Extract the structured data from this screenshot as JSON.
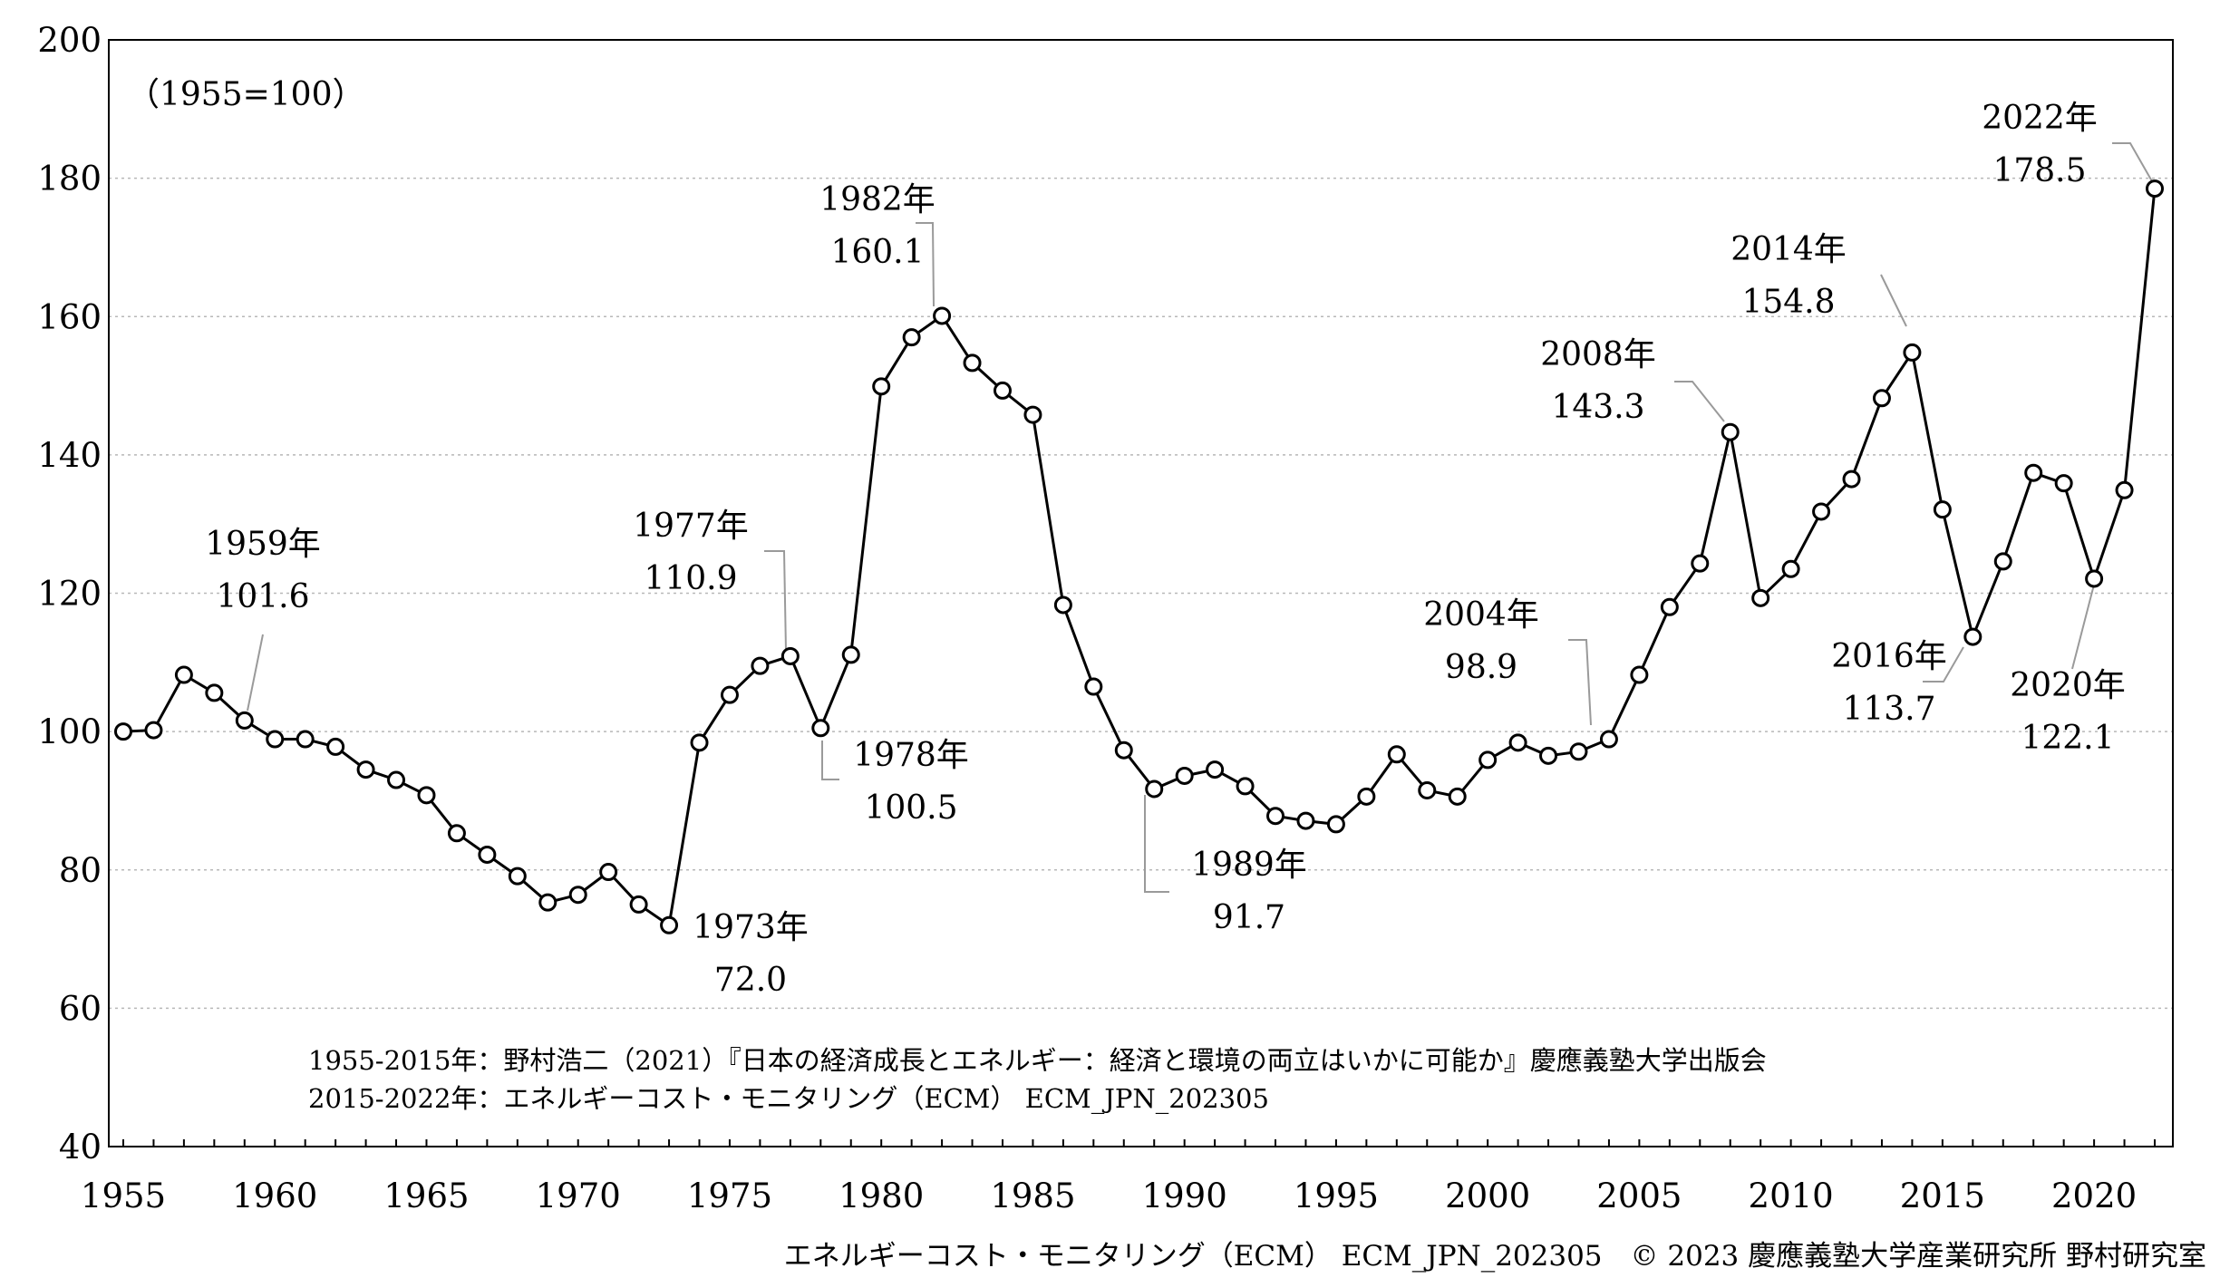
{
  "chart_data": {
    "type": "line",
    "title": "",
    "xlabel": "",
    "ylabel": "",
    "ylim": [
      40,
      200
    ],
    "xlim": [
      1955,
      2022
    ],
    "yticks": [
      40,
      60,
      80,
      100,
      120,
      140,
      160,
      180,
      200
    ],
    "xticks": [
      1955,
      1960,
      1965,
      1970,
      1975,
      1980,
      1985,
      1990,
      1995,
      2000,
      2005,
      2010,
      2015,
      2020
    ],
    "grid": true,
    "index_note": "（1955=100）",
    "series": [
      {
        "x": [
          1955,
          1956,
          1957,
          1958,
          1959,
          1960,
          1961,
          1962,
          1963,
          1964,
          1965,
          1966,
          1967,
          1968,
          1969,
          1970,
          1971,
          1972,
          1973,
          1974,
          1975,
          1976,
          1977,
          1978,
          1979,
          1980,
          1981,
          1982,
          1983,
          1984,
          1985,
          1986,
          1987,
          1988,
          1989,
          1990,
          1991,
          1992,
          1993,
          1994,
          1995,
          1996,
          1997,
          1998,
          1999,
          2000,
          2001,
          2002,
          2003,
          2004,
          2005,
          2006,
          2007,
          2008,
          2009,
          2010,
          2011,
          2012,
          2013,
          2014,
          2015,
          2016,
          2017,
          2018,
          2019,
          2020,
          2021,
          2022
        ],
        "values": [
          100.0,
          100.2,
          108.2,
          105.6,
          101.6,
          98.9,
          98.9,
          97.8,
          94.5,
          93.0,
          90.8,
          85.3,
          82.2,
          79.1,
          75.3,
          76.4,
          79.7,
          75.0,
          72.0,
          98.4,
          105.3,
          109.5,
          110.9,
          100.5,
          111.1,
          149.9,
          157.0,
          160.1,
          153.3,
          149.3,
          145.8,
          118.3,
          106.5,
          97.3,
          91.7,
          93.6,
          94.5,
          92.1,
          87.8,
          87.1,
          86.6,
          90.6,
          96.7,
          91.5,
          90.6,
          95.9,
          98.4,
          96.5,
          97.1,
          98.9,
          108.2,
          118.0,
          124.3,
          143.3,
          119.3,
          123.5,
          131.8,
          136.5,
          148.2,
          154.8,
          132.1,
          113.7,
          124.6,
          137.4,
          135.9,
          122.1,
          134.9,
          178.5
        ]
      }
    ],
    "annotations": [
      {
        "year": "1959年",
        "value": "101.6"
      },
      {
        "year": "1973年",
        "value": "72.0"
      },
      {
        "year": "1977年",
        "value": "110.9"
      },
      {
        "year": "1978年",
        "value": "100.5"
      },
      {
        "year": "1982年",
        "value": "160.1"
      },
      {
        "year": "1989年",
        "value": "91.7"
      },
      {
        "year": "2004年",
        "value": "98.9"
      },
      {
        "year": "2008年",
        "value": "143.3"
      },
      {
        "year": "2014年",
        "value": "154.8"
      },
      {
        "year": "2016年",
        "value": "113.7"
      },
      {
        "year": "2020年",
        "value": "122.1"
      },
      {
        "year": "2022年",
        "value": "178.5"
      }
    ],
    "sources": [
      "1955-2015年：野村浩二（2021）『日本の経済成長とエネルギー：経済と環境の両立はいかに可能か』慶應義塾大学出版会",
      "2015-2022年：エネルギーコスト・モニタリング（ECM） ECM_JPN_202305"
    ]
  },
  "footer": "エネルギーコスト・モニタリング（ECM） ECM_JPN_202305　© 2023 慶應義塾大学産業研究所 野村研究室"
}
